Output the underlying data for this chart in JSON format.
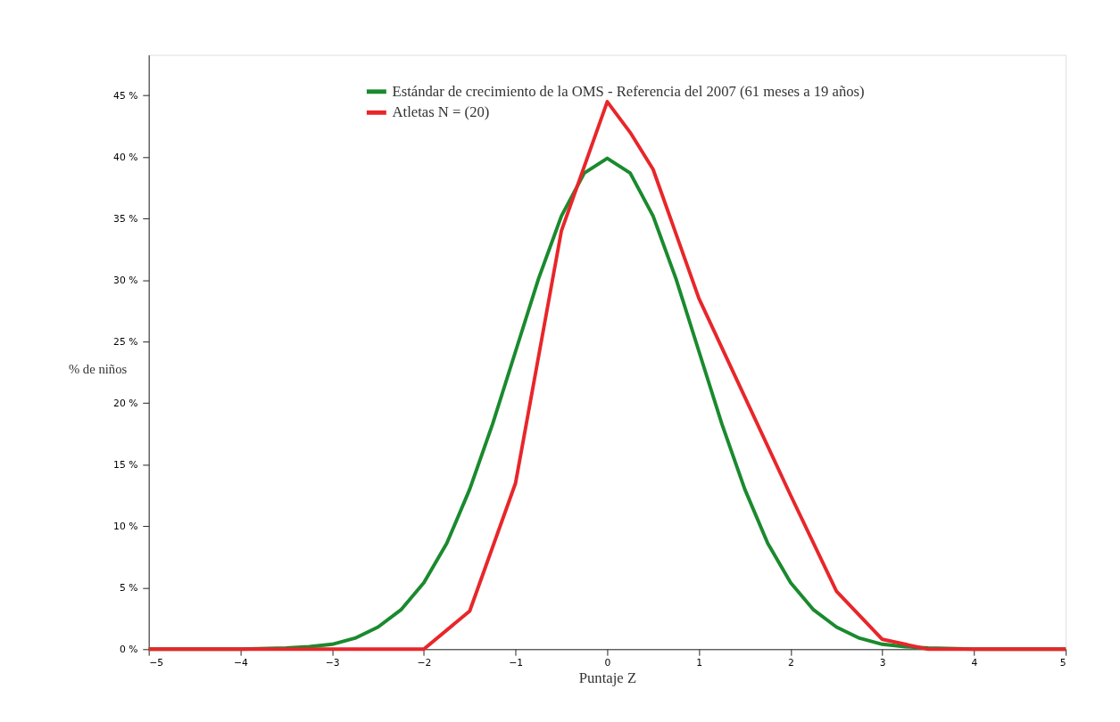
{
  "chart_data": {
    "type": "line",
    "xlabel": "Puntaje Z",
    "ylabel": "% de niños",
    "xlim": [
      -5,
      5
    ],
    "ylim": [
      0,
      48.3
    ],
    "xticks": [
      -5,
      -4,
      -3,
      -2,
      -1,
      0,
      1,
      2,
      3,
      4,
      5
    ],
    "yticks": [
      {
        "value": 0,
        "label": "0 %"
      },
      {
        "value": 5,
        "label": "5 %"
      },
      {
        "value": 10,
        "label": "10 %"
      },
      {
        "value": 15,
        "label": "15 %"
      },
      {
        "value": 20,
        "label": "20 %"
      },
      {
        "value": 25,
        "label": "25 %"
      },
      {
        "value": 30,
        "label": "30 %"
      },
      {
        "value": 35,
        "label": "35 %"
      },
      {
        "value": 40,
        "label": "40 %"
      },
      {
        "value": 45,
        "label": "45 %"
      }
    ],
    "grid": false,
    "legend": "top",
    "line_style": "solid",
    "marker": "none",
    "series": [
      {
        "name": "Estándar de crecimiento de la OMS - Referencia del 2007 (61 meses a 19 años)",
        "color": "#1a8a2e",
        "x": [
          -5,
          -4,
          -3.5,
          -3.25,
          -3,
          -2.75,
          -2.5,
          -2.25,
          -2,
          -1.75,
          -1.5,
          -1.25,
          -1,
          -0.75,
          -0.5,
          -0.25,
          0,
          0.25,
          0.5,
          0.75,
          1,
          1.25,
          1.5,
          1.75,
          2,
          2.25,
          2.5,
          2.75,
          3,
          3.25,
          3.5,
          4,
          5
        ],
        "values": [
          0,
          0,
          0.1,
          0.2,
          0.4,
          0.9,
          1.8,
          3.2,
          5.4,
          8.6,
          13.0,
          18.3,
          24.2,
          30.1,
          35.2,
          38.7,
          39.9,
          38.7,
          35.2,
          30.1,
          24.2,
          18.3,
          13.0,
          8.6,
          5.4,
          3.2,
          1.8,
          0.9,
          0.4,
          0.2,
          0.1,
          0,
          0
        ]
      },
      {
        "name": "Atletas N = (20)",
        "color": "#e8262a",
        "x": [
          -5,
          -2,
          -1.5,
          -1,
          -0.5,
          0,
          0.25,
          0.5,
          1,
          1.5,
          2,
          2.5,
          3,
          3.5,
          5
        ],
        "values": [
          0,
          0,
          3.1,
          13.5,
          34,
          44.5,
          42,
          39,
          28.5,
          20.5,
          12.5,
          4.7,
          0.8,
          0,
          0
        ]
      }
    ]
  }
}
